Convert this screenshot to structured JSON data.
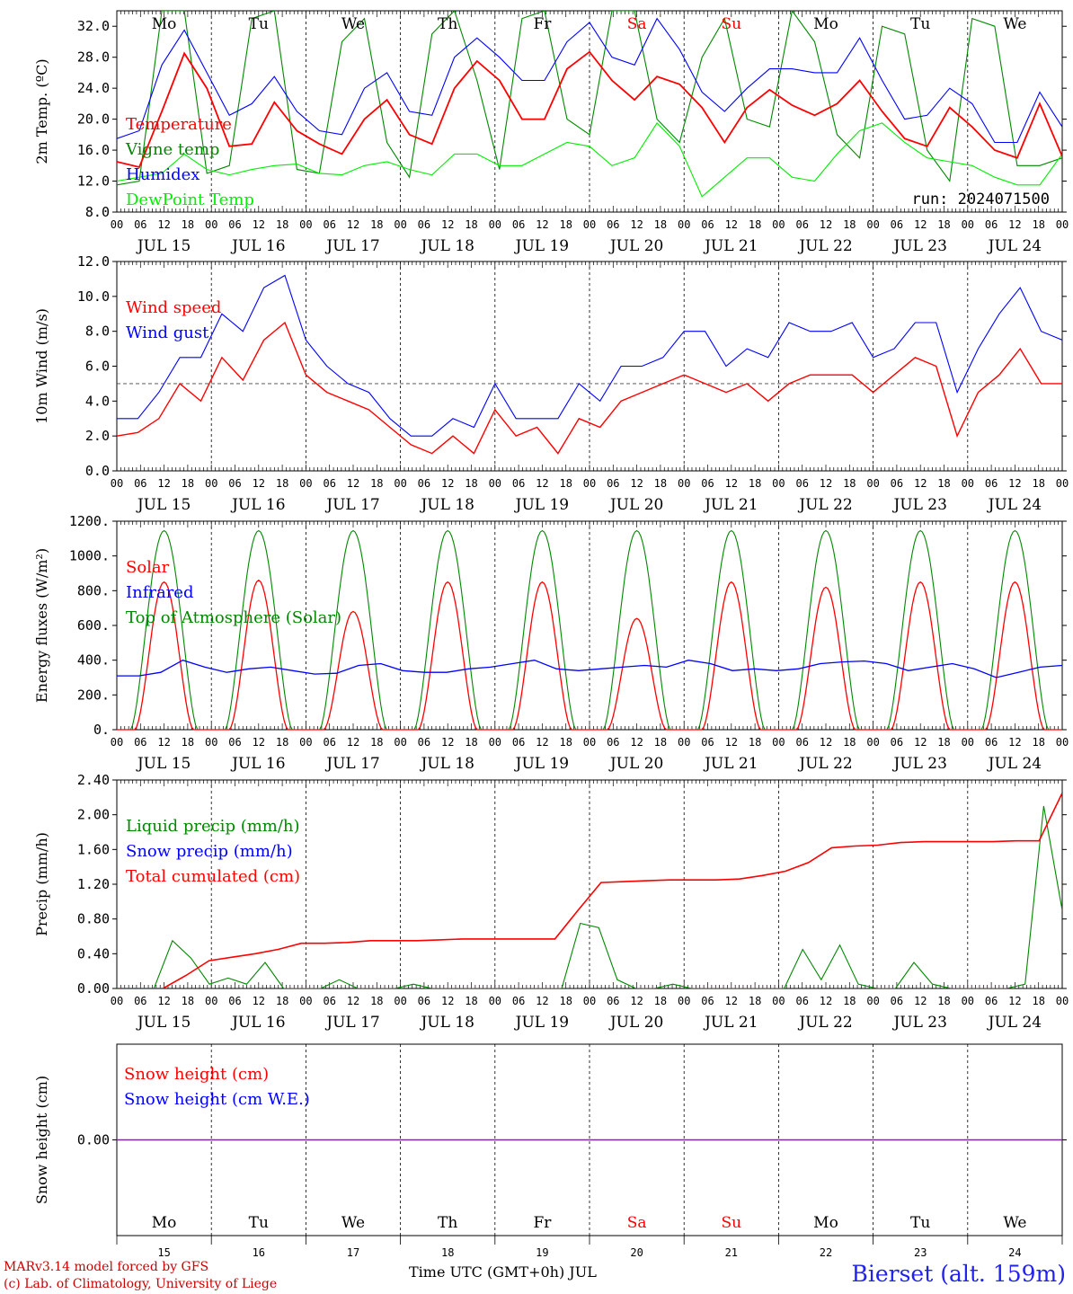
{
  "chart_data": [
    {
      "type": "line",
      "ylabel": "2m Temp. (ºC)",
      "ylim": [
        8,
        34
      ],
      "yticks": [
        "8.0",
        "12.0",
        "16.0",
        "20.0",
        "24.0",
        "28.0",
        "32.0"
      ],
      "annotation": "run: 2024071500",
      "x_start": "JUL 15 00",
      "x_step_hours": 6,
      "series": [
        {
          "name": "Temperature",
          "color": "#ff0000",
          "values": [
            14.5,
            13.8,
            21,
            28.5,
            24,
            16.5,
            16.8,
            22.2,
            18.5,
            16.8,
            15.5,
            20,
            22.5,
            18,
            16.8,
            24,
            27.5,
            25,
            20,
            20,
            26.5,
            28.7,
            25,
            22.5,
            25.5,
            24.5,
            21.5,
            17,
            21.5,
            23.8,
            21.8,
            20.5,
            22,
            25,
            21,
            17.5,
            16.5,
            21.5,
            19,
            16,
            15,
            22,
            15.2
          ]
        },
        {
          "name": "Vigne temp",
          "color": "#008800",
          "values": [
            11.5,
            12,
            34,
            34,
            13,
            14,
            33,
            34,
            13.5,
            13,
            30,
            33,
            17,
            12.5,
            31,
            34,
            25,
            13.5,
            33,
            34,
            20,
            18,
            34,
            34,
            20,
            17,
            28,
            33,
            20,
            19,
            34,
            30,
            18,
            15,
            32,
            31,
            16,
            12,
            33,
            32,
            14,
            14,
            15
          ]
        },
        {
          "name": "Humidex",
          "color": "#0000ff",
          "values": [
            17.5,
            18.5,
            27,
            31.5,
            26,
            20.5,
            22,
            25.5,
            21,
            18.5,
            18,
            24,
            26,
            21,
            20.5,
            28,
            30.5,
            28,
            25,
            25,
            30,
            32.5,
            28,
            27,
            33,
            29,
            23.5,
            21,
            24,
            26.5,
            26.5,
            26,
            26,
            30.5,
            25,
            20,
            20.5,
            24,
            22,
            17,
            17,
            23.5,
            19
          ]
        },
        {
          "name": "DewPoint Temp",
          "color": "#00ee00",
          "values": [
            12,
            12.5,
            13,
            15.5,
            13.5,
            12.8,
            13.5,
            14,
            14.2,
            13,
            12.8,
            14,
            14.5,
            13.5,
            12.8,
            15.5,
            15.5,
            14,
            14,
            15.5,
            17,
            16.5,
            14,
            15,
            19.5,
            16.5,
            10,
            12.5,
            15,
            15,
            12.5,
            12,
            15.5,
            18.5,
            19.5,
            17,
            15,
            14.5,
            14,
            12.5,
            11.5,
            11.5,
            15.5
          ]
        }
      ]
    },
    {
      "type": "line",
      "ylabel": "10m Wind (m/s)",
      "ylim": [
        0,
        12
      ],
      "yticks": [
        "0.0",
        "2.0",
        "4.0",
        "6.0",
        "8.0",
        "10.0",
        "12.0"
      ],
      "reference_line": 5,
      "x_start": "JUL 15 00",
      "x_step_hours": 6,
      "series": [
        {
          "name": "Wind speed",
          "color": "#ff0000",
          "values": [
            2,
            2.2,
            3,
            5,
            4,
            6.5,
            5.2,
            7.5,
            8.5,
            5.5,
            4.5,
            4,
            3.5,
            2.5,
            1.5,
            1,
            2,
            1,
            3.5,
            2,
            2.5,
            1,
            3,
            2.5,
            4,
            4.5,
            5,
            5.5,
            5,
            4.5,
            5,
            4,
            5,
            5.5,
            5.5,
            5.5,
            4.5,
            5.5,
            6.5,
            6,
            2,
            4.5,
            5.5,
            7,
            5,
            5
          ]
        },
        {
          "name": "Wind gust",
          "color": "#0000ff",
          "values": [
            3,
            3,
            4.5,
            6.5,
            6.5,
            9,
            8,
            10.5,
            11.2,
            7.5,
            6,
            5,
            4.5,
            3,
            2,
            2,
            3,
            2.5,
            5,
            3,
            3,
            3,
            5,
            4,
            6,
            6,
            6.5,
            8,
            8,
            6,
            7,
            6.5,
            8.5,
            8,
            8,
            8.5,
            6.5,
            7,
            8.5,
            8.5,
            4.5,
            7,
            9,
            10.5,
            8,
            7.5
          ]
        }
      ]
    },
    {
      "type": "line",
      "ylabel": "Energy fluxes (W/m²)",
      "ylim": [
        0,
        1200
      ],
      "yticks": [
        "0.",
        "200.",
        "400.",
        "600.",
        "800.",
        "1000.",
        "1200."
      ],
      "x_start": "JUL 15 00",
      "x_step_hours": 6,
      "series": [
        {
          "name": "Solar",
          "color": "#ff0000",
          "days_peak": [
            850,
            860,
            680,
            850,
            850,
            640,
            850,
            820,
            850,
            850
          ]
        },
        {
          "name": "Infrared",
          "color": "#0000ff",
          "values": [
            310,
            310,
            330,
            400,
            360,
            330,
            350,
            360,
            340,
            320,
            325,
            370,
            380,
            340,
            330,
            330,
            350,
            360,
            380,
            400,
            350,
            340,
            350,
            360,
            370,
            360,
            400,
            380,
            340,
            350,
            340,
            350,
            380,
            390,
            395,
            380,
            340,
            360,
            380,
            350,
            300,
            330,
            360,
            370
          ]
        },
        {
          "name": "Top of Atmosphere (Solar)",
          "color": "#008800",
          "peak": 1145
        }
      ]
    },
    {
      "type": "line",
      "ylabel": "Precip (mm/h)",
      "ylim": [
        0,
        2.4
      ],
      "yticks": [
        "0.00",
        "0.40",
        "0.80",
        "1.20",
        "1.60",
        "2.00",
        "2.40"
      ],
      "x_start": "JUL 15 00",
      "x_step_hours": 6,
      "series": [
        {
          "name": "Liquid precip (mm/h)",
          "color": "#008800",
          "values": [
            0,
            0,
            0,
            0.55,
            0.35,
            0.05,
            0.12,
            0.05,
            0.3,
            0,
            0,
            0,
            0.1,
            0,
            0,
            0,
            0.05,
            0,
            0,
            0,
            0,
            0,
            0,
            0,
            0,
            0.75,
            0.7,
            0.1,
            0,
            0,
            0.05,
            0,
            0,
            0,
            0,
            0,
            0,
            0.45,
            0.1,
            0.5,
            0.05,
            0,
            0,
            0.3,
            0.05,
            0,
            0,
            0,
            0,
            0.05,
            2.1,
            0.9
          ]
        },
        {
          "name": "Snow precip (mm/h)",
          "color": "#0000ff",
          "values": []
        },
        {
          "name": "Total cumulated (cm)",
          "color": "#ff0000",
          "values": [
            0,
            0,
            0,
            0.15,
            0.32,
            0.36,
            0.4,
            0.45,
            0.52,
            0.52,
            0.53,
            0.55,
            0.55,
            0.55,
            0.56,
            0.57,
            0.57,
            0.57,
            0.57,
            0.57,
            0.9,
            1.22,
            1.23,
            1.24,
            1.25,
            1.25,
            1.25,
            1.26,
            1.3,
            1.35,
            1.45,
            1.62,
            1.64,
            1.65,
            1.68,
            1.69,
            1.69,
            1.69,
            1.69,
            1.7,
            1.7,
            2.25
          ]
        }
      ]
    },
    {
      "type": "line",
      "ylabel": "Snow height (cm)",
      "yticks": [
        "0.00"
      ],
      "series": [
        {
          "name": "Snow height (cm)",
          "color": "#ff0000",
          "values": [
            0,
            0
          ]
        },
        {
          "name": "Snow height (cm W.E.)",
          "color": "#0000ff",
          "values": [
            0,
            0
          ]
        }
      ]
    }
  ],
  "x_axis": {
    "hour_ticks": [
      "00",
      "06",
      "12",
      "18"
    ],
    "end_tick": "00",
    "date_labels": [
      "JUL 15",
      "JUL 16",
      "JUL 17",
      "JUL 18",
      "JUL 19",
      "JUL 20",
      "JUL 21",
      "JUL 22",
      "JUL 23",
      "JUL 24"
    ],
    "weekdays": [
      "Mo",
      "Tu",
      "We",
      "Th",
      "Fr",
      "Sa",
      "Su",
      "Mo",
      "Tu",
      "We"
    ],
    "weekday_colors": [
      "#000000",
      "#000000",
      "#000000",
      "#000000",
      "#000000",
      "#ff0000",
      "#ff0000",
      "#000000",
      "#000000",
      "#000000"
    ],
    "day_numbers": [
      "15",
      "16",
      "17",
      "18",
      "19",
      "20",
      "21",
      "22",
      "23",
      "24"
    ],
    "title": "Time UTC (GMT+0h) JUL"
  },
  "footer": {
    "model": "MARv3.14 model forced by GFS",
    "copyright": "(c) Lab. of Climatology, University of Liege",
    "station": "Bierset (alt. 159m)"
  }
}
